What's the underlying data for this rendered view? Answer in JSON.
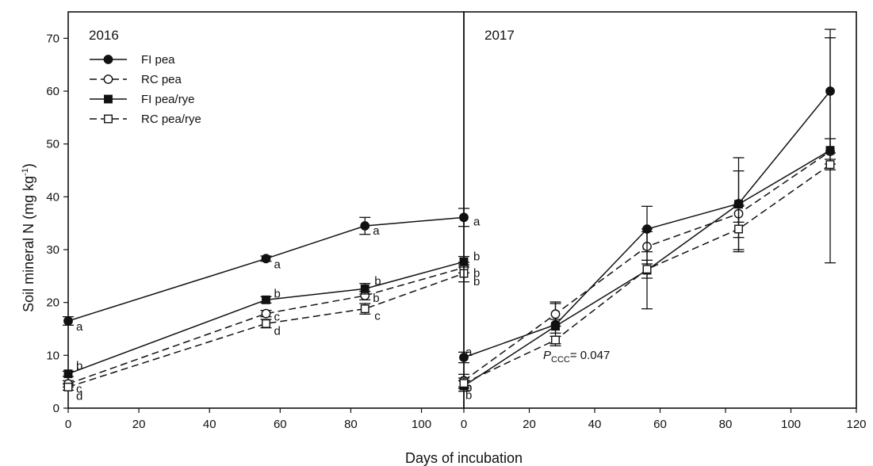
{
  "figure": {
    "xlabel": "Days of incubation",
    "ylabel_main": "Soil mineral N (mg kg",
    "ylabel_sup": "-1",
    "ylabel_close": ")"
  },
  "chart_data": [
    {
      "type": "line",
      "title": "2016",
      "xlim": [
        0,
        112
      ],
      "ylim": [
        0,
        75
      ],
      "x_ticks": [
        0,
        20,
        40,
        60,
        80,
        100
      ],
      "y_ticks": [
        0,
        10,
        20,
        30,
        40,
        50,
        60,
        70
      ],
      "legend": {
        "placement": "top-left"
      },
      "series": [
        {
          "name": "FI pea",
          "line": "solid",
          "marker": "circle-filled",
          "x": [
            0,
            56,
            84,
            112
          ],
          "y": [
            16.5,
            28.3,
            34.5,
            36.1
          ],
          "err": [
            0.8,
            0.5,
            1.6,
            1.7
          ],
          "letters": [
            "a",
            "a",
            "a",
            "a"
          ]
        },
        {
          "name": "RC pea",
          "line": "dashed",
          "marker": "circle-open",
          "x": [
            0,
            56,
            84,
            112
          ],
          "y": [
            4.6,
            17.9,
            21.3,
            26.6
          ],
          "err": [
            0.6,
            0.6,
            0.8,
            1.0
          ],
          "letters": [
            "c",
            "c",
            "b",
            "b"
          ]
        },
        {
          "name": "FI pea/rye",
          "line": "solid",
          "marker": "square-filled",
          "x": [
            0,
            56,
            84,
            112
          ],
          "y": [
            6.5,
            20.5,
            22.6,
            27.7
          ],
          "err": [
            0.5,
            0.6,
            1.0,
            1.0
          ],
          "letters": [
            "b",
            "b",
            "b",
            "b"
          ]
        },
        {
          "name": "RC pea/rye",
          "line": "dashed",
          "marker": "square-open",
          "x": [
            0,
            56,
            84,
            112
          ],
          "y": [
            4.0,
            16.0,
            18.8,
            25.5
          ],
          "err": [
            0.6,
            0.8,
            1.0,
            1.6
          ],
          "letters": [
            "d",
            "d",
            "c",
            "b"
          ]
        }
      ]
    },
    {
      "type": "line",
      "title": "2017",
      "xlim": [
        0,
        120
      ],
      "ylim": [
        0,
        75
      ],
      "x_ticks": [
        0,
        20,
        40,
        60,
        80,
        100,
        120
      ],
      "annotation": {
        "symbol": "P",
        "subscript": "CCC",
        "text": "= 0.047"
      },
      "series": [
        {
          "name": "FI pea",
          "line": "solid",
          "marker": "circle-filled",
          "x": [
            0,
            28,
            56,
            84,
            112
          ],
          "y": [
            9.6,
            15.8,
            33.9,
            38.7,
            60.0
          ],
          "err": [
            1.0,
            4.0,
            4.3,
            8.7,
            11.7
          ],
          "letters": [
            "a",
            "",
            "",
            "",
            ""
          ]
        },
        {
          "name": "RC pea",
          "line": "dashed",
          "marker": "circle-open",
          "x": [
            0,
            28,
            56,
            84,
            112
          ],
          "y": [
            5.2,
            17.8,
            30.6,
            36.8,
            48.6
          ],
          "err": [
            1.2,
            2.3,
            3.3,
            1.6,
            2.4
          ],
          "letters": [
            "b",
            "",
            "",
            "",
            ""
          ]
        },
        {
          "name": "FI pea/rye",
          "line": "solid",
          "marker": "square-filled",
          "x": [
            0,
            28,
            56,
            84,
            112
          ],
          "y": [
            4.2,
            15.5,
            26.1,
            38.6,
            48.8
          ],
          "err": [
            1.0,
            1.3,
            7.3,
            6.3,
            21.3
          ],
          "letters": [
            "b",
            "",
            "",
            "",
            ""
          ]
        },
        {
          "name": "RC pea/rye",
          "line": "dashed",
          "marker": "square-open",
          "x": [
            0,
            28,
            56,
            84,
            112
          ],
          "y": [
            4.7,
            12.9,
            26.3,
            33.9,
            46.1
          ],
          "err": [
            1.0,
            0.7,
            1.7,
            4.3,
            1.0
          ],
          "letters": [
            "b",
            "",
            "",
            "",
            ""
          ]
        }
      ]
    }
  ]
}
